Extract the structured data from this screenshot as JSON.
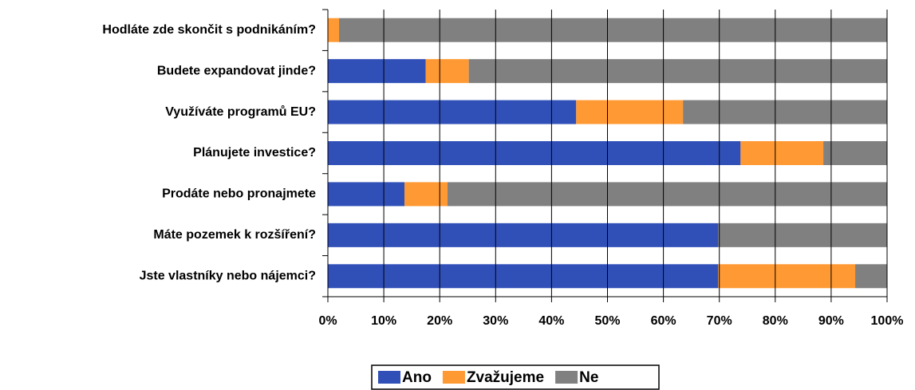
{
  "chart_data": {
    "type": "stacked_barh",
    "categories": [
      "Hodláte zde skončit s podnikáním?",
      "Budete expandovat jinde?",
      "Využíváte programů EU?",
      "Plánujete investice?",
      "Prodáte nebo pronajmete",
      "Máte pozemek k rozšíření?",
      "Jste vlastníky nebo nájemci?"
    ],
    "series": [
      {
        "name": "Ano",
        "color": "#3050b8",
        "values": [
          0,
          17.5,
          44.4,
          73.8,
          13.7,
          69.8,
          69.8
        ]
      },
      {
        "name": "Zvažujeme",
        "color": "#ff9933",
        "values": [
          2,
          7.7,
          19.1,
          14.8,
          7.7,
          0,
          24.5
        ]
      },
      {
        "name": "Ne",
        "color": "#808080",
        "values": [
          98,
          74.8,
          36.5,
          11.4,
          78.6,
          30.2,
          5.7
        ]
      }
    ],
    "xlim": [
      0,
      100
    ],
    "xticks": [
      {
        "value": 0,
        "label": "0%"
      },
      {
        "value": 10,
        "label": "10%"
      },
      {
        "value": 20,
        "label": "20%"
      },
      {
        "value": 30,
        "label": "30%"
      },
      {
        "value": 40,
        "label": "40%"
      },
      {
        "value": 50,
        "label": "50%"
      },
      {
        "value": 60,
        "label": "60%"
      },
      {
        "value": 70,
        "label": "70%"
      },
      {
        "value": 80,
        "label": "80%"
      },
      {
        "value": 90,
        "label": "90%"
      },
      {
        "value": 100,
        "label": "100%"
      }
    ],
    "grid": true,
    "legend": "bottom"
  }
}
